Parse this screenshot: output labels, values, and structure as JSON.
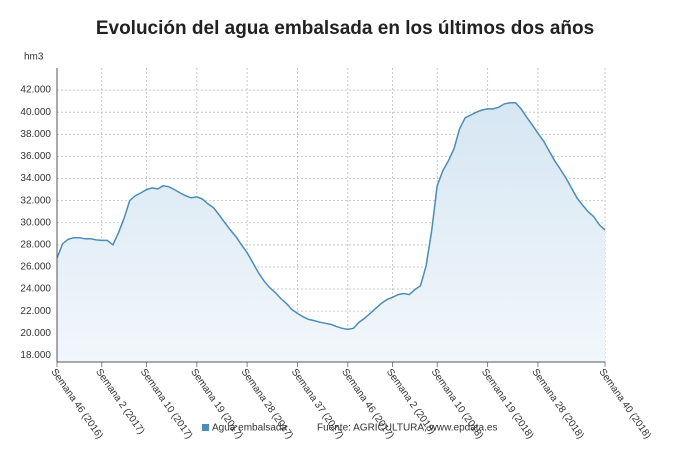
{
  "chart_data": {
    "type": "line",
    "title": "Evolución del agua embalsada en los últimos dos años",
    "y_label": "hm3",
    "source": "Fuente: AGRICULTURA, www.epdata.es",
    "categories": [
      "Semana 46 (2016)",
      null,
      null,
      null,
      null,
      null,
      null,
      null,
      "Semana 2 (2017)",
      null,
      null,
      null,
      null,
      null,
      null,
      null,
      "Semana 10 (2017)",
      null,
      null,
      null,
      null,
      null,
      null,
      null,
      null,
      "Semana 19 (2017)",
      null,
      null,
      null,
      null,
      null,
      null,
      null,
      null,
      "Semana 28 (2017)",
      null,
      null,
      null,
      null,
      null,
      null,
      null,
      null,
      "Semana 37 (2017)",
      null,
      null,
      null,
      null,
      null,
      null,
      null,
      null,
      "Semana 46 (2017)",
      null,
      null,
      null,
      null,
      null,
      null,
      null,
      "Semana 2 (2018)",
      null,
      null,
      null,
      null,
      null,
      null,
      null,
      "Semana 10 (2018)",
      null,
      null,
      null,
      null,
      null,
      null,
      null,
      null,
      "Semana 19 (2018)",
      null,
      null,
      null,
      null,
      null,
      null,
      null,
      null,
      "Semana 28 (2018)",
      null,
      null,
      null,
      null,
      null,
      null,
      null,
      null,
      null,
      null,
      null,
      "Semana 40 (2018)"
    ],
    "series": [
      {
        "name": "Agua embalsada",
        "color": "#4a8db8",
        "fill": "#e3eef7",
        "values": [
          26800,
          28100,
          28500,
          28650,
          28650,
          28550,
          28550,
          28450,
          28400,
          28400,
          28000,
          29100,
          30400,
          32000,
          32450,
          32700,
          33000,
          33150,
          33050,
          33350,
          33250,
          33000,
          32700,
          32450,
          32250,
          32350,
          32150,
          31700,
          31350,
          30700,
          30000,
          29350,
          28750,
          28000,
          27300,
          26400,
          25500,
          24750,
          24150,
          23700,
          23150,
          22700,
          22150,
          21800,
          21500,
          21250,
          21150,
          21000,
          20900,
          20800,
          20600,
          20450,
          20350,
          20450,
          21000,
          21350,
          21800,
          22250,
          22700,
          23050,
          23250,
          23500,
          23600,
          23500,
          23950,
          24300,
          26100,
          29300,
          33350,
          34700,
          35600,
          36700,
          38500,
          39500,
          39750,
          40000,
          40200,
          40300,
          40300,
          40450,
          40750,
          40850,
          40850,
          40300,
          39550,
          38850,
          38100,
          37400,
          36500,
          35600,
          34850,
          34050,
          33150,
          32250,
          31600,
          31000,
          30550,
          29800,
          29350
        ]
      }
    ],
    "ylim": [
      17400,
      44000
    ],
    "yticks": [
      {
        "value": 18000,
        "label": "18.000"
      },
      {
        "value": 20000,
        "label": "20.000"
      },
      {
        "value": 22000,
        "label": "22.000"
      },
      {
        "value": 24000,
        "label": "24.000"
      },
      {
        "value": 26000,
        "label": "26.000"
      },
      {
        "value": 28000,
        "label": "28.000"
      },
      {
        "value": 30000,
        "label": "30.000"
      },
      {
        "value": 32000,
        "label": "32.000"
      },
      {
        "value": 34000,
        "label": "34.000"
      },
      {
        "value": 36000,
        "label": "36.000"
      },
      {
        "value": 38000,
        "label": "38.000"
      },
      {
        "value": 40000,
        "label": "40.000"
      },
      {
        "value": 42000,
        "label": "42.000"
      }
    ],
    "grid": true
  }
}
